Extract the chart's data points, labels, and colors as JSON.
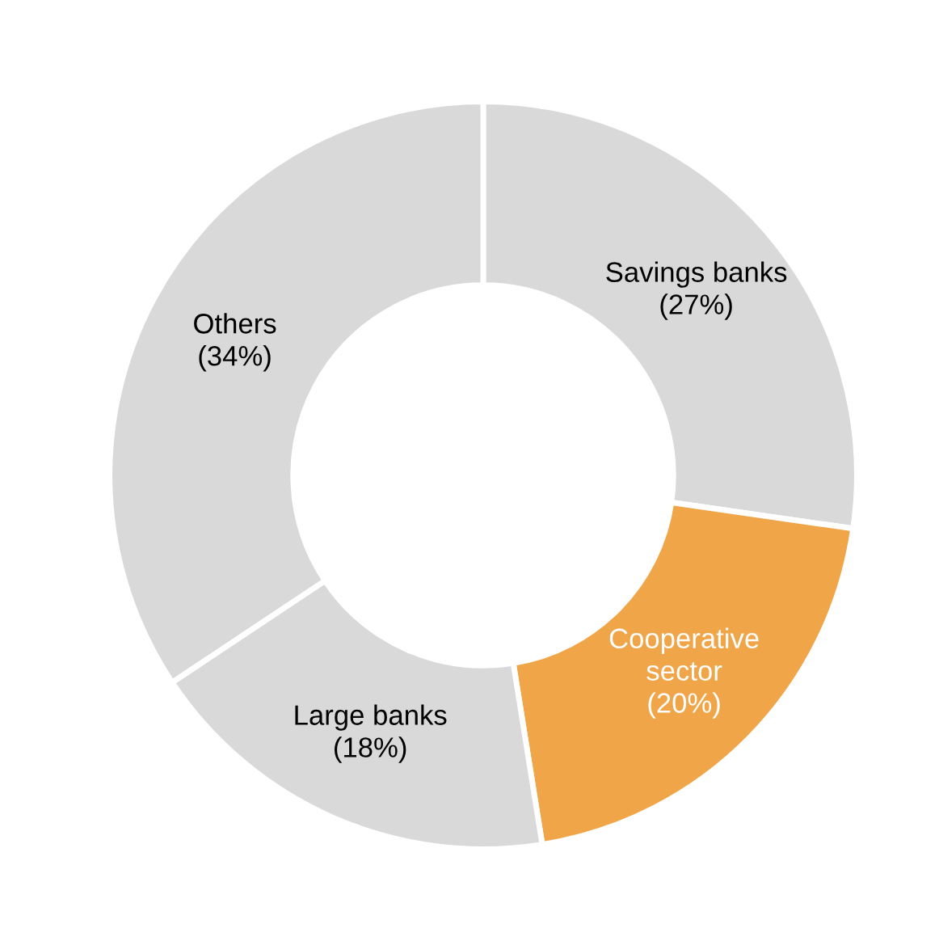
{
  "chart_data": {
    "type": "donut",
    "categories": [
      "Savings banks",
      "Cooperative sector",
      "Large banks",
      "Others"
    ],
    "values": [
      27,
      20,
      18,
      34
    ],
    "colors": [
      "#d9d9d9",
      "#f0a648",
      "#d9d9d9",
      "#d9d9d9"
    ],
    "value_labels": [
      "(27%)",
      "(20%)",
      "(18%)",
      "(34%)"
    ],
    "legend": false
  }
}
